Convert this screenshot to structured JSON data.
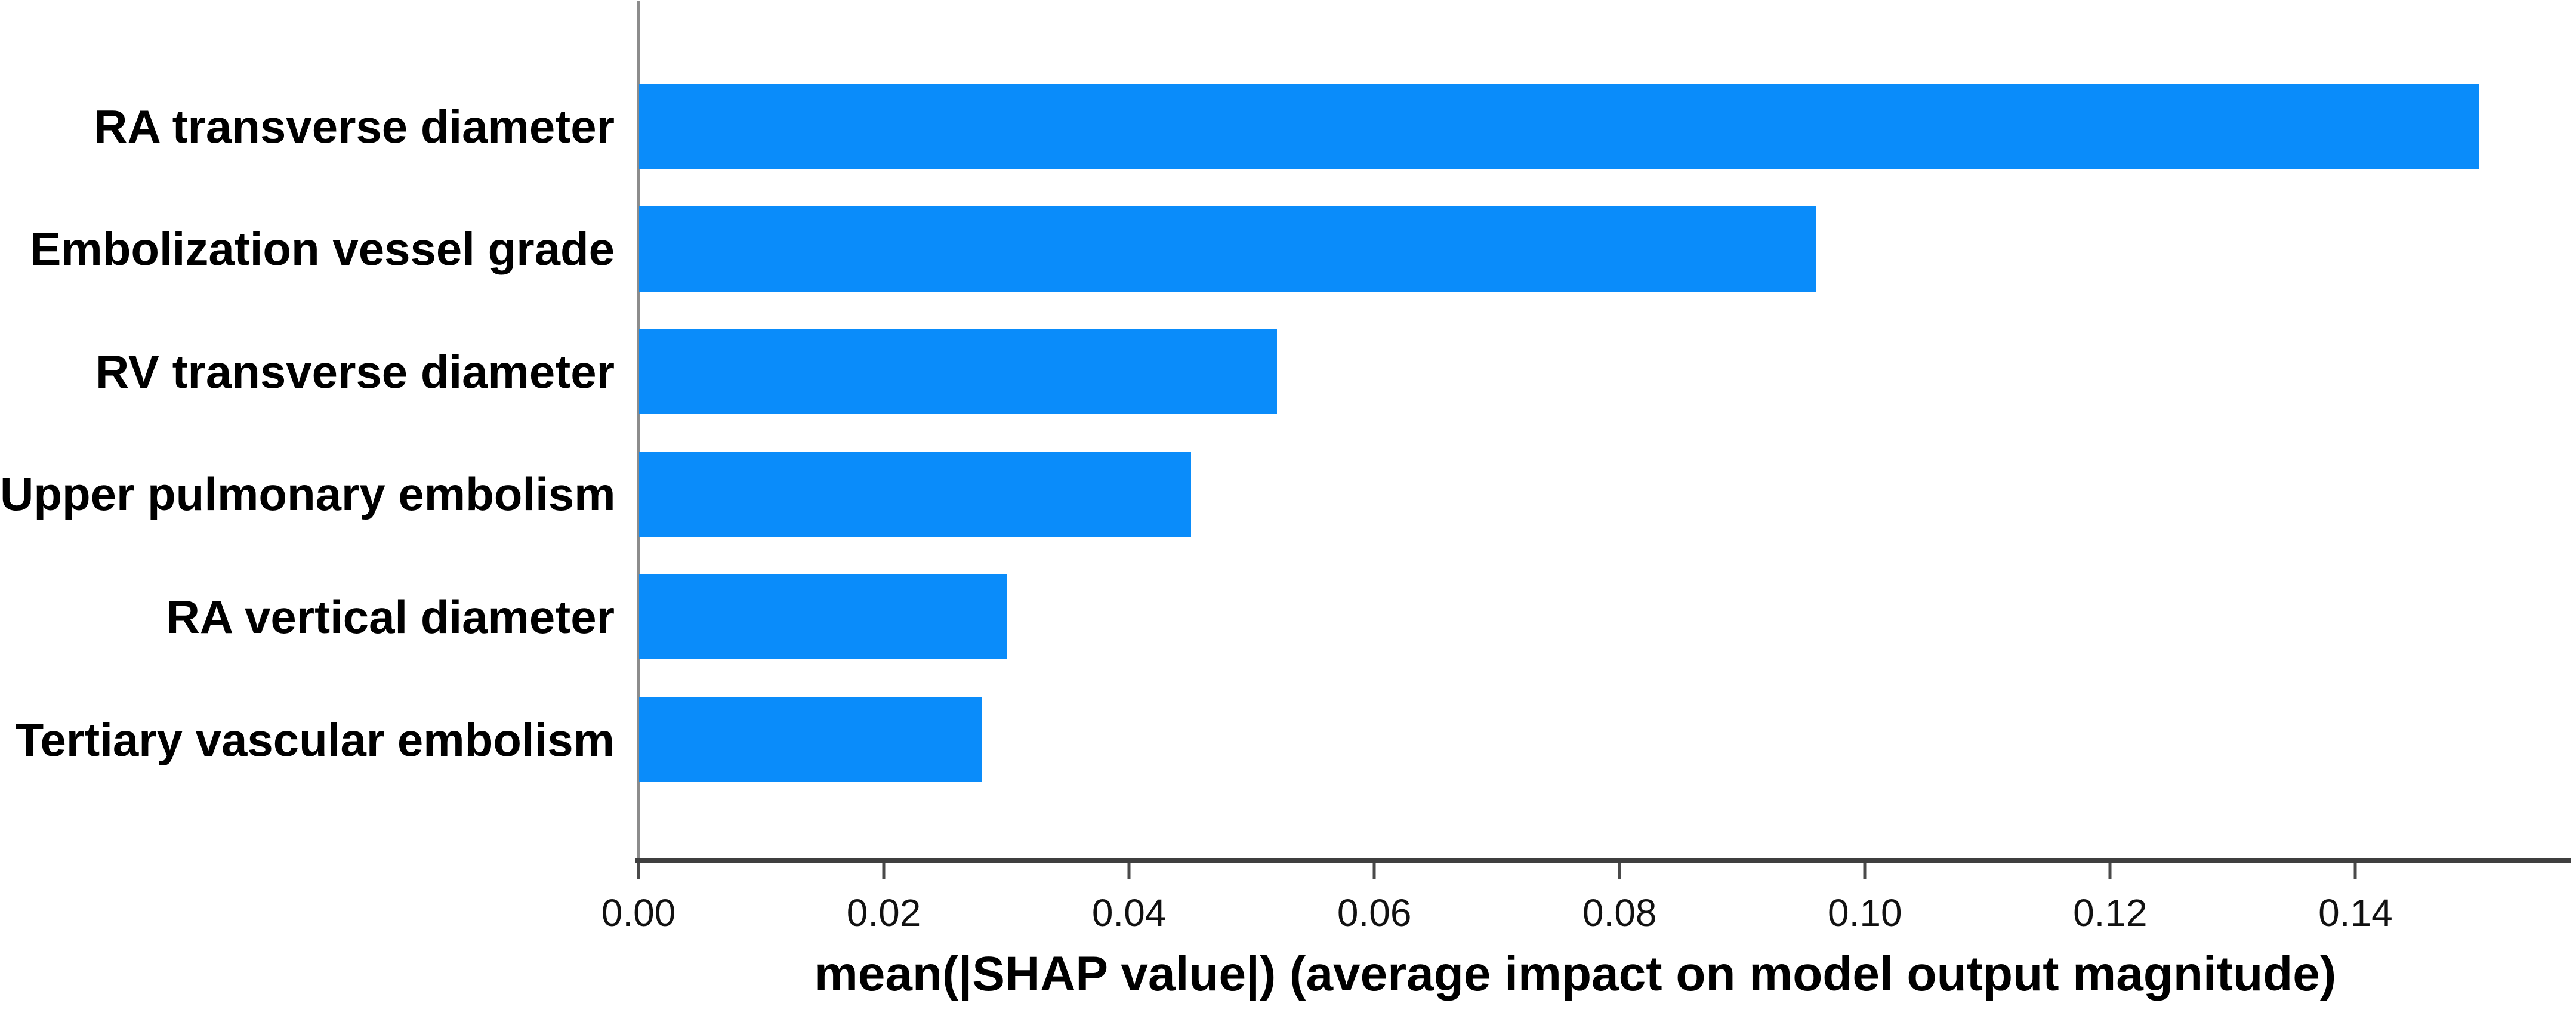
{
  "chart_data": {
    "type": "bar",
    "orientation": "horizontal",
    "title": "",
    "categories": [
      "RA transverse diameter",
      "Embolization vessel grade",
      "RV transverse diameter",
      "Upper pulmonary embolism",
      "RA vertical diameter",
      "Tertiary vascular embolism"
    ],
    "values": [
      0.15,
      0.096,
      0.052,
      0.045,
      0.03,
      0.028
    ],
    "xlabel": "mean(|SHAP value|) (average impact on model output magnitude)",
    "ylabel": "",
    "xticks": [
      0.0,
      0.02,
      0.04,
      0.06,
      0.08,
      0.1,
      0.12,
      0.14
    ],
    "xtick_labels": [
      "0.00",
      "0.02",
      "0.04",
      "0.06",
      "0.08",
      "0.10",
      "0.12",
      "0.14"
    ],
    "xlim": [
      0,
      0.1573
    ],
    "grid": false,
    "legend": null,
    "colors": {
      "bar": "#0a8cfa",
      "axis_line": "#3f3f3f",
      "spine": "#8c8c8c",
      "tick": "#4a4a4a",
      "text": "#000000"
    }
  }
}
